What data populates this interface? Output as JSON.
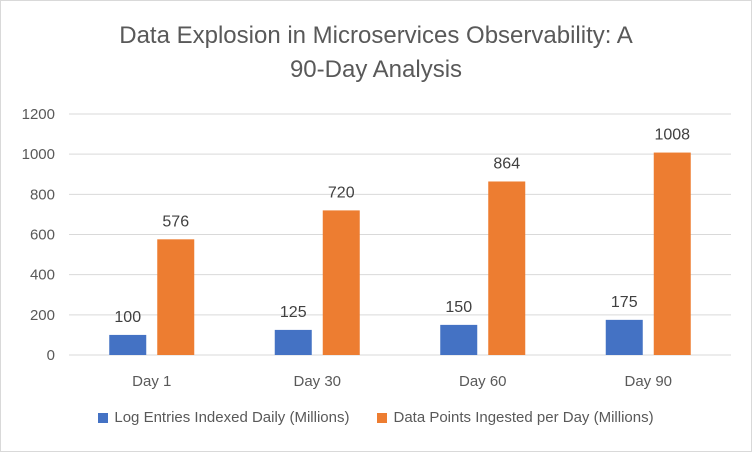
{
  "chart_data": {
    "type": "bar",
    "title_lines": [
      "Data Explosion in Microservices Observability: A",
      "90-Day Analysis"
    ],
    "categories": [
      "Day 1",
      "Day 30",
      "Day 60",
      "Day 90"
    ],
    "series": [
      {
        "name": "Log Entries Indexed Daily (Millions)",
        "color": "#4472c4",
        "values": [
          100,
          125,
          150,
          175
        ]
      },
      {
        "name": "Data Points Ingested per Day (Millions)",
        "color": "#ed7d31",
        "values": [
          576,
          720,
          864,
          1008
        ]
      }
    ],
    "ylim": [
      0,
      1200
    ],
    "yticks": [
      0,
      200,
      400,
      600,
      800,
      1000,
      1200
    ],
    "grid": true,
    "legend_position": "bottom",
    "data_labels": true
  }
}
